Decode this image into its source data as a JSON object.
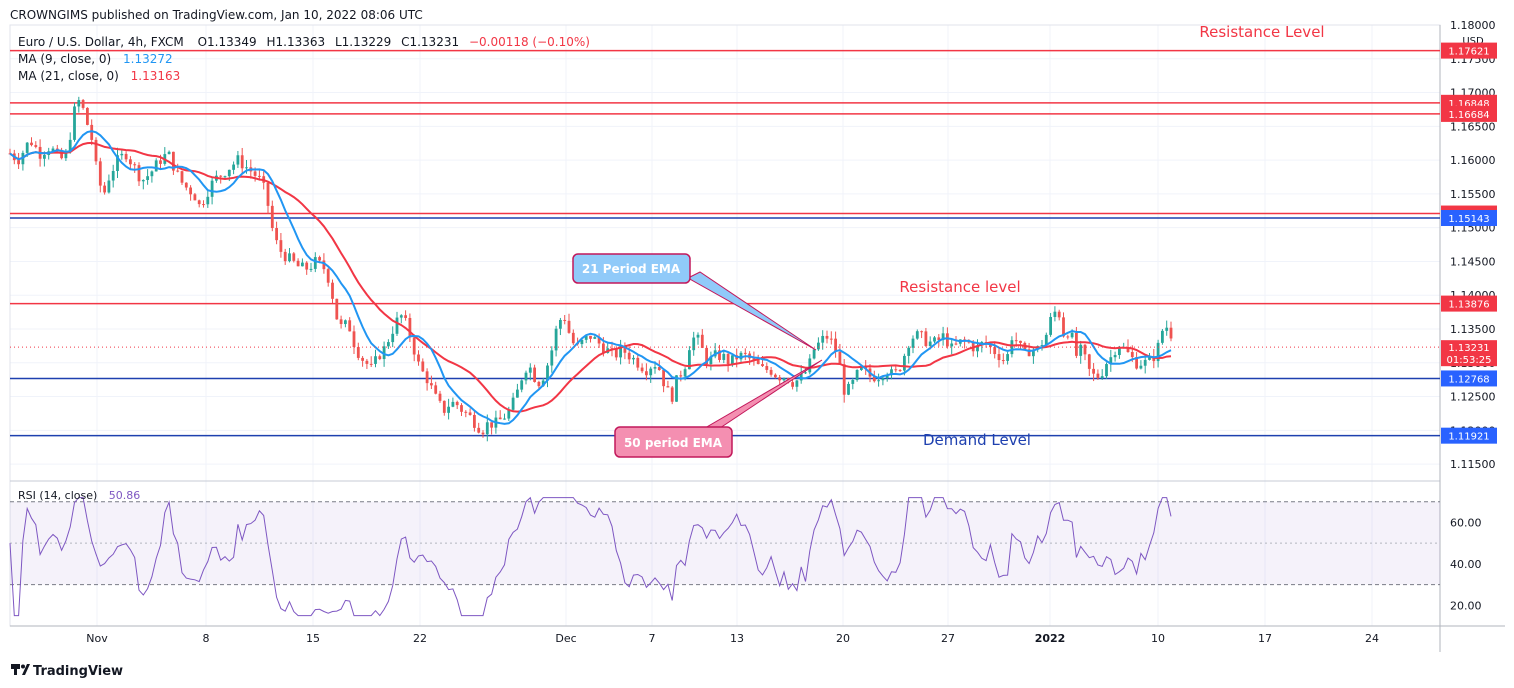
{
  "header": {
    "publisher": "CROWNGIMS published on TradingView.com, Jan 10, 2022 08:06 UTC",
    "symbol": "Euro / U.S. Dollar, 4h, FXCM",
    "ohlc_o": "O1.13349",
    "ohlc_h": "H1.13363",
    "ohlc_l": "L1.13229",
    "ohlc_c": "C1.13231",
    "change": "−0.00118 (−0.10%)",
    "ma9_label": "MA (9, close, 0)",
    "ma9_value": "1.13272",
    "ma21_label": "MA (21, close, 0)",
    "ma21_value": "1.13163",
    "rsi_label": "RSI (14, close)",
    "rsi_value": "50.86"
  },
  "footer": {
    "brand": "TradingView"
  },
  "colors": {
    "bull": "#26a69a",
    "bear": "#ef5350",
    "ma9": "#2196f3",
    "ma21": "#f23645",
    "resistance": "#f23645",
    "support": "#1e40af",
    "rsi": "#7e57c2"
  },
  "annotations": {
    "resistance_top": "Resistance Level",
    "resistance_mid": "Resistance level",
    "demand": "Demand Level",
    "ema21_callout": "21 Period EMA",
    "ema50_callout": "50 period EMA"
  },
  "chart_data": {
    "type": "candlestick",
    "price_axis": {
      "currency": "USD",
      "ylim": [
        1.1125,
        1.18
      ],
      "ticks": [
        "1.18000",
        "1.17500",
        "1.17000",
        "1.16500",
        "1.16000",
        "1.15500",
        "1.15000",
        "1.14500",
        "1.14000",
        "1.13500",
        "1.13000",
        "1.12500",
        "1.12000",
        "1.11500"
      ]
    },
    "time_axis": {
      "labels": [
        "Nov",
        "8",
        "15",
        "22",
        "Dec",
        "7",
        "13",
        "20",
        "27",
        "2022",
        "10",
        "17",
        "24"
      ]
    },
    "price_levels": [
      {
        "value": 1.17621,
        "label": "1.17621",
        "kind": "resistance"
      },
      {
        "value": 1.16848,
        "label": "1.16848",
        "kind": "resistance"
      },
      {
        "value": 1.16684,
        "label": "1.16684",
        "kind": "resistance"
      },
      {
        "value": 1.15209,
        "label": "1.15209",
        "kind": "resistance"
      },
      {
        "value": 1.15143,
        "label": "1.15143",
        "kind": "support"
      },
      {
        "value": 1.13876,
        "label": "1.13876",
        "kind": "resistance"
      },
      {
        "value": 1.12768,
        "label": "1.12768",
        "kind": "support"
      },
      {
        "value": 1.11921,
        "label": "1.11921",
        "kind": "support"
      }
    ],
    "last_price": {
      "value": 1.13231,
      "label": "1.13231",
      "countdown": "01:53:25"
    },
    "close_path": [
      [
        0,
        1.161
      ],
      [
        8,
        1.16
      ],
      [
        20,
        1.163
      ],
      [
        30,
        1.161
      ],
      [
        40,
        1.162
      ],
      [
        50,
        1.16
      ],
      [
        58,
        1.161
      ],
      [
        62,
        1.166
      ],
      [
        66,
        1.168
      ],
      [
        70,
        1.169
      ],
      [
        76,
        1.166
      ],
      [
        82,
        1.163
      ],
      [
        88,
        1.157
      ],
      [
        94,
        1.155
      ],
      [
        100,
        1.158
      ],
      [
        108,
        1.16
      ],
      [
        116,
        1.161
      ],
      [
        124,
        1.159
      ],
      [
        132,
        1.157
      ],
      [
        140,
        1.158
      ],
      [
        150,
        1.16
      ],
      [
        158,
        1.161
      ],
      [
        164,
        1.159
      ],
      [
        170,
        1.157
      ],
      [
        176,
        1.156
      ],
      [
        184,
        1.155
      ],
      [
        190,
        1.153
      ],
      [
        196,
        1.155
      ],
      [
        204,
        1.157
      ],
      [
        212,
        1.158
      ],
      [
        220,
        1.159
      ],
      [
        228,
        1.16
      ],
      [
        236,
        1.159
      ],
      [
        244,
        1.158
      ],
      [
        250,
        1.157
      ],
      [
        256,
        1.155
      ],
      [
        262,
        1.15
      ],
      [
        268,
        1.147
      ],
      [
        274,
        1.146
      ],
      [
        282,
        1.145
      ],
      [
        290,
        1.144
      ],
      [
        298,
        1.144
      ],
      [
        306,
        1.145
      ],
      [
        314,
        1.144
      ],
      [
        320,
        1.142
      ],
      [
        326,
        1.137
      ],
      [
        332,
        1.135
      ],
      [
        338,
        1.136
      ],
      [
        344,
        1.133
      ],
      [
        350,
        1.131
      ],
      [
        356,
        1.13
      ],
      [
        362,
        1.129
      ],
      [
        368,
        1.131
      ],
      [
        374,
        1.132
      ],
      [
        380,
        1.134
      ],
      [
        386,
        1.136
      ],
      [
        392,
        1.137
      ],
      [
        398,
        1.135
      ],
      [
        404,
        1.132
      ],
      [
        410,
        1.129
      ],
      [
        416,
        1.128
      ],
      [
        422,
        1.126
      ],
      [
        428,
        1.124
      ],
      [
        434,
        1.123
      ],
      [
        440,
        1.124
      ],
      [
        446,
        1.124
      ],
      [
        452,
        1.123
      ],
      [
        460,
        1.122
      ],
      [
        466,
        1.121
      ],
      [
        472,
        1.12
      ],
      [
        478,
        1.121
      ],
      [
        486,
        1.121
      ],
      [
        494,
        1.122
      ],
      [
        500,
        1.123
      ],
      [
        506,
        1.125
      ],
      [
        512,
        1.128
      ],
      [
        518,
        1.13
      ],
      [
        524,
        1.128
      ],
      [
        530,
        1.127
      ],
      [
        536,
        1.129
      ],
      [
        542,
        1.132
      ],
      [
        548,
        1.136
      ],
      [
        554,
        1.137
      ],
      [
        560,
        1.134
      ],
      [
        566,
        1.132
      ],
      [
        572,
        1.133
      ],
      [
        580,
        1.134
      ],
      [
        588,
        1.133
      ],
      [
        596,
        1.132
      ],
      [
        604,
        1.131
      ],
      [
        612,
        1.132
      ],
      [
        620,
        1.131
      ],
      [
        628,
        1.13
      ],
      [
        636,
        1.129
      ],
      [
        644,
        1.13
      ],
      [
        650,
        1.129
      ],
      [
        656,
        1.126
      ],
      [
        662,
        1.125
      ],
      [
        668,
        1.128
      ],
      [
        674,
        1.129
      ],
      [
        680,
        1.133
      ],
      [
        686,
        1.134
      ],
      [
        692,
        1.132
      ],
      [
        698,
        1.13
      ],
      [
        704,
        1.131
      ],
      [
        712,
        1.131
      ],
      [
        720,
        1.13
      ],
      [
        728,
        1.131
      ],
      [
        736,
        1.131
      ],
      [
        744,
        1.13
      ],
      [
        752,
        1.129
      ],
      [
        760,
        1.129
      ],
      [
        768,
        1.128
      ],
      [
        776,
        1.128
      ],
      [
        784,
        1.127
      ],
      [
        792,
        1.128
      ],
      [
        798,
        1.129
      ],
      [
        804,
        1.132
      ],
      [
        810,
        1.133
      ],
      [
        816,
        1.134
      ],
      [
        822,
        1.133
      ],
      [
        828,
        1.131
      ],
      [
        834,
        1.126
      ],
      [
        840,
        1.126
      ],
      [
        846,
        1.128
      ],
      [
        852,
        1.129
      ],
      [
        860,
        1.128
      ],
      [
        868,
        1.128
      ],
      [
        876,
        1.129
      ],
      [
        884,
        1.128
      ],
      [
        892,
        1.13
      ],
      [
        898,
        1.133
      ],
      [
        904,
        1.134
      ],
      [
        910,
        1.134
      ],
      [
        918,
        1.133
      ],
      [
        926,
        1.133
      ],
      [
        934,
        1.134
      ],
      [
        942,
        1.132
      ],
      [
        950,
        1.133
      ],
      [
        958,
        1.133
      ],
      [
        966,
        1.132
      ],
      [
        974,
        1.133
      ],
      [
        982,
        1.132
      ],
      [
        990,
        1.131
      ],
      [
        996,
        1.13
      ],
      [
        1002,
        1.134
      ],
      [
        1008,
        1.133
      ],
      [
        1014,
        1.131
      ],
      [
        1020,
        1.132
      ],
      [
        1028,
        1.132
      ],
      [
        1036,
        1.134
      ],
      [
        1042,
        1.137
      ],
      [
        1048,
        1.138
      ],
      [
        1054,
        1.134
      ],
      [
        1060,
        1.135
      ],
      [
        1066,
        1.131
      ],
      [
        1072,
        1.132
      ],
      [
        1078,
        1.129
      ],
      [
        1084,
        1.128
      ],
      [
        1090,
        1.128
      ],
      [
        1096,
        1.13
      ],
      [
        1102,
        1.131
      ],
      [
        1108,
        1.133
      ],
      [
        1114,
        1.132
      ],
      [
        1120,
        1.131
      ],
      [
        1126,
        1.13
      ],
      [
        1132,
        1.13
      ],
      [
        1138,
        1.13
      ],
      [
        1144,
        1.131
      ],
      [
        1150,
        1.133
      ],
      [
        1154,
        1.136
      ],
      [
        1158,
        1.135
      ],
      [
        1162,
        1.134
      ],
      [
        1165,
        1.1323
      ]
    ],
    "rsi": {
      "ylim": [
        10,
        80
      ],
      "ticks": [
        "60.00",
        "40.00",
        "20.00"
      ],
      "band": [
        30,
        70
      ]
    }
  }
}
